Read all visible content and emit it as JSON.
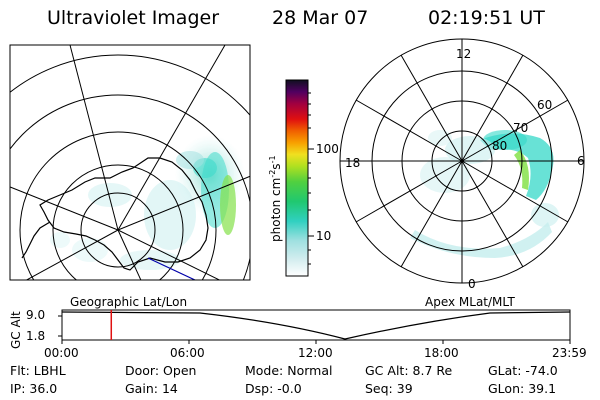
{
  "header": {
    "title": "Ultraviolet Imager",
    "date": "28 Mar 07",
    "time": "02:19:51 UT"
  },
  "colorbar": {
    "unit_main": "photon cm",
    "unit_sup1": "-2",
    "unit_mid": "s",
    "unit_sup2": "-1",
    "ticks": [
      "100",
      "10"
    ]
  },
  "maps": {
    "left_label": "Geographic Lat/Lon",
    "right_label": "Apex MLat/MLT",
    "mlt_labels": {
      "top": "12",
      "right": "6",
      "bottom": "0",
      "left": "18"
    },
    "mlat_labels": [
      "80",
      "70",
      "60"
    ]
  },
  "timeline": {
    "y_axis_label": "GC Alt",
    "y_ticks": [
      "9.0",
      "1.8"
    ],
    "x_ticks": [
      "00:00",
      "06:00",
      "12:00",
      "18:00",
      "23:59"
    ],
    "current_time_fraction": 0.097
  },
  "info": {
    "row1": [
      {
        "key": "Flt:",
        "val": "LBHL"
      },
      {
        "key": "Door:",
        "val": "Open"
      },
      {
        "key": "Mode:",
        "val": "Normal"
      },
      {
        "key": "GC Alt:",
        "val": "8.7 Re"
      },
      {
        "key": "GLat:",
        "val": "-74.0"
      }
    ],
    "row2": [
      {
        "key": "IP:",
        "val": "36.0"
      },
      {
        "key": "Gain:",
        "val": "14"
      },
      {
        "key": "Dsp:",
        "val": "-0.0"
      },
      {
        "key": "Seq:",
        "val": "39"
      },
      {
        "key": "GLon:",
        "val": "39.1"
      }
    ]
  },
  "colors": {
    "aurora_low": "#b8e6e6",
    "aurora_mid": "#36d8c8",
    "aurora_high": "#8be04a",
    "time_marker": "#e01010",
    "coast_line": "#0000aa"
  }
}
